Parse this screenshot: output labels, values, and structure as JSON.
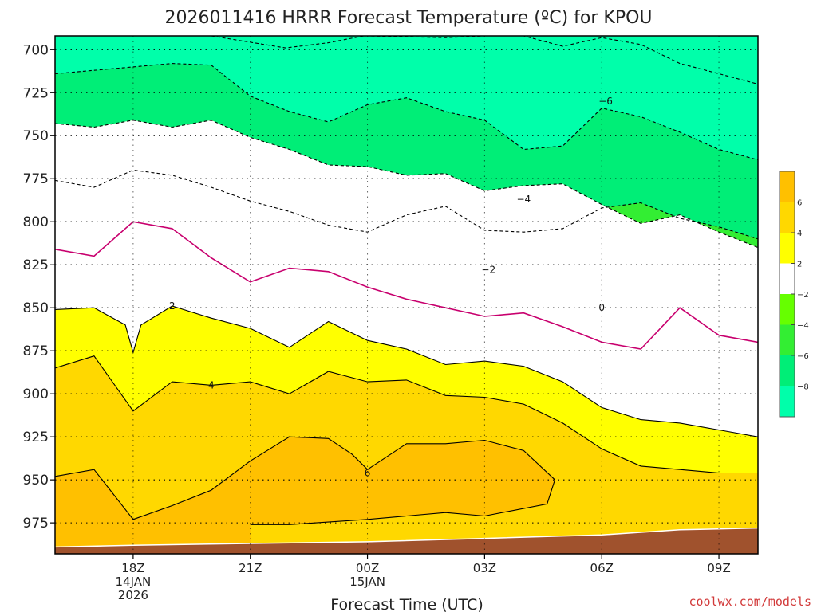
{
  "chart_data": {
    "type": "contour",
    "title": "2026011416 HRRR Forecast Temperature (ºC) for KPOU",
    "xlabel": "Forecast Time (UTC)",
    "credit": "coolwx.com/models",
    "x_ticks": [
      {
        "hour": 18,
        "lines": [
          "18Z",
          "14JAN",
          "2026"
        ]
      },
      {
        "hour": 21,
        "lines": [
          "21Z"
        ]
      },
      {
        "hour": 24,
        "lines": [
          "00Z",
          "15JAN"
        ]
      },
      {
        "hour": 27,
        "lines": [
          "03Z"
        ]
      },
      {
        "hour": 30,
        "lines": [
          "06Z"
        ]
      },
      {
        "hour": 33,
        "lines": [
          "09Z"
        ]
      }
    ],
    "xlim": [
      16,
      34
    ],
    "y_ticks": [
      "700",
      "725",
      "750",
      "775",
      "800",
      "825",
      "850",
      "875",
      "900",
      "925",
      "950",
      "975"
    ],
    "ylim": [
      692,
      993
    ],
    "y_scale": "inverted",
    "grid": true,
    "colorbar": {
      "labels": [
        "6",
        "4",
        "2",
        "−2",
        "−4",
        "−6",
        "−8"
      ],
      "bands": [
        {
          "from": 6,
          "to": 8,
          "color": "#ffc000"
        },
        {
          "from": 4,
          "to": 6,
          "color": "#ffd800"
        },
        {
          "from": 2,
          "to": 4,
          "color": "#ffff00"
        },
        {
          "from": -2,
          "to": 2,
          "color": "#ffffff"
        },
        {
          "from": -4,
          "to": -2,
          "color": "#66ff00"
        },
        {
          "from": -6,
          "to": -4,
          "color": "#33ee33"
        },
        {
          "from": -8,
          "to": -6,
          "color": "#00ee77"
        },
        {
          "from": -10,
          "to": -8,
          "color": "#00ffaa"
        }
      ]
    },
    "ground_color": "#a0522d",
    "ground": [
      [
        16,
        989
      ],
      [
        18,
        988
      ],
      [
        21,
        987
      ],
      [
        24,
        986
      ],
      [
        27,
        984
      ],
      [
        30,
        982
      ],
      [
        32,
        979
      ],
      [
        34,
        978
      ]
    ],
    "contours": [
      {
        "level": -8,
        "style": "dashed",
        "color": "#000000",
        "fill": "#00ffaa",
        "label": "",
        "points": [
          [
            20.0,
            692
          ],
          [
            21.9,
            699
          ],
          [
            23.0,
            696
          ],
          [
            23.9,
            692
          ],
          [
            24.0,
            692
          ],
          [
            26.0,
            693
          ],
          [
            27.0,
            692
          ],
          [
            28.0,
            692
          ],
          [
            29.0,
            698
          ],
          [
            30.0,
            693
          ],
          [
            31.0,
            697
          ],
          [
            32.0,
            708
          ],
          [
            33.0,
            714
          ],
          [
            34.0,
            720
          ]
        ]
      },
      {
        "level": -6,
        "style": "dashed",
        "color": "#000000",
        "fill": "#00ee77",
        "label": "−6",
        "label_at": [
          30.1,
          730
        ],
        "points": [
          [
            16.0,
            714
          ],
          [
            18.0,
            710
          ],
          [
            19.0,
            708
          ],
          [
            20.0,
            709
          ],
          [
            21.0,
            727
          ],
          [
            22.0,
            736
          ],
          [
            23.0,
            742
          ],
          [
            24.0,
            732
          ],
          [
            25.0,
            728
          ],
          [
            26.0,
            736
          ],
          [
            27.0,
            741
          ],
          [
            28.0,
            758
          ],
          [
            29.0,
            756
          ],
          [
            30.0,
            734
          ],
          [
            31.0,
            739
          ],
          [
            32.0,
            748
          ],
          [
            33.0,
            758
          ],
          [
            34.0,
            764
          ]
        ]
      },
      {
        "level": -4,
        "style": "dashed",
        "color": "#000000",
        "fill": "#33ee33",
        "label": "−4",
        "label_at": [
          28.0,
          787
        ],
        "points": [
          [
            16.0,
            776
          ],
          [
            17.0,
            780
          ],
          [
            18.0,
            770
          ],
          [
            19.0,
            773
          ],
          [
            20.0,
            780
          ],
          [
            21.0,
            788
          ],
          [
            22.0,
            794
          ],
          [
            23.0,
            802
          ],
          [
            24.0,
            806
          ],
          [
            25.0,
            796
          ],
          [
            26.0,
            791
          ],
          [
            27.0,
            805
          ],
          [
            28.0,
            806
          ],
          [
            29.0,
            804
          ],
          [
            30.0,
            792
          ],
          [
            31.0,
            789
          ],
          [
            32.0,
            798
          ],
          [
            33.0,
            803
          ],
          [
            34.0,
            810
          ]
        ]
      },
      {
        "level": -2,
        "style": "dashed",
        "color": "#000000",
        "fill": "#66ff00",
        "label": "−2",
        "label_at": [
          27.1,
          828
        ],
        "points": [
          [
            16.0,
            743
          ],
          [
            17.0,
            745
          ],
          [
            18.0,
            741
          ],
          [
            19.0,
            745
          ],
          [
            20.0,
            741
          ],
          [
            21.0,
            751
          ],
          [
            22.0,
            758
          ],
          [
            23.0,
            767
          ],
          [
            24.0,
            768
          ],
          [
            25.0,
            773
          ],
          [
            26.0,
            772
          ],
          [
            27.0,
            782
          ],
          [
            28.0,
            779
          ],
          [
            29.0,
            778
          ],
          [
            30.0,
            790
          ],
          [
            31.0,
            801
          ],
          [
            32.0,
            796
          ],
          [
            33.0,
            806
          ],
          [
            34.0,
            815
          ]
        ]
      },
      {
        "level": 0,
        "style": "solid",
        "color": "#c8006e",
        "fill": "",
        "label": "0",
        "label_at": [
          30.0,
          850
        ],
        "points": [
          [
            16.0,
            816
          ],
          [
            17.0,
            820
          ],
          [
            18.0,
            800
          ],
          [
            19.0,
            804
          ],
          [
            20.0,
            821
          ],
          [
            21.0,
            835
          ],
          [
            22.0,
            827
          ],
          [
            23.0,
            829
          ],
          [
            24.0,
            838
          ],
          [
            25.0,
            845
          ],
          [
            26.0,
            850
          ],
          [
            27.0,
            855
          ],
          [
            28.0,
            853
          ],
          [
            29.0,
            861
          ],
          [
            30.0,
            870
          ],
          [
            31.0,
            874
          ],
          [
            32.0,
            850
          ],
          [
            33.0,
            866
          ],
          [
            34.0,
            870
          ]
        ]
      },
      {
        "level": 2,
        "style": "solid",
        "color": "#000000",
        "fill": "#ffff00",
        "label": "2",
        "label_at": [
          19.0,
          849
        ],
        "points": [
          [
            16.0,
            851
          ],
          [
            17.0,
            850
          ],
          [
            17.8,
            860
          ],
          [
            18.0,
            876
          ],
          [
            18.2,
            860
          ],
          [
            19.0,
            849
          ],
          [
            20.0,
            856
          ],
          [
            21.0,
            862
          ],
          [
            22.0,
            873
          ],
          [
            23.0,
            858
          ],
          [
            24.0,
            869
          ],
          [
            25.0,
            874
          ],
          [
            26.0,
            883
          ],
          [
            27.0,
            881
          ],
          [
            28.0,
            884
          ],
          [
            29.0,
            893
          ],
          [
            30.0,
            908
          ],
          [
            31.0,
            915
          ],
          [
            32.0,
            917
          ],
          [
            33.0,
            921
          ],
          [
            34.0,
            925
          ]
        ]
      },
      {
        "level": 4,
        "style": "solid",
        "color": "#000000",
        "fill": "#ffd800",
        "label": "4",
        "label_at": [
          20.0,
          895
        ],
        "points": [
          [
            16.0,
            885
          ],
          [
            17.0,
            878
          ],
          [
            18.0,
            910
          ],
          [
            19.0,
            893
          ],
          [
            20.0,
            895
          ],
          [
            21.0,
            893
          ],
          [
            22.0,
            900
          ],
          [
            23.0,
            887
          ],
          [
            24.0,
            893
          ],
          [
            25.0,
            892
          ],
          [
            26.0,
            901
          ],
          [
            27.0,
            902
          ],
          [
            28.0,
            906
          ],
          [
            29.0,
            917
          ],
          [
            30.0,
            932
          ],
          [
            31.0,
            942
          ],
          [
            32.0,
            944
          ],
          [
            33.0,
            946
          ],
          [
            34.0,
            946
          ]
        ]
      },
      {
        "level": 6,
        "style": "solid",
        "color": "#000000",
        "fill": "#ffc000",
        "label": "6",
        "label_at": [
          24.0,
          946
        ],
        "points": [
          [
            16.0,
            948
          ],
          [
            17.0,
            944
          ],
          [
            18.0,
            973
          ],
          [
            19.0,
            965
          ],
          [
            20.0,
            956
          ],
          [
            21.0,
            939
          ],
          [
            22.0,
            925
          ],
          [
            23.0,
            926
          ],
          [
            23.6,
            935
          ],
          [
            24.0,
            944
          ],
          [
            25.0,
            929
          ],
          [
            26.0,
            929
          ],
          [
            27.0,
            927
          ],
          [
            28.0,
            933
          ],
          [
            28.8,
            950
          ],
          [
            28.6,
            964
          ],
          [
            27.0,
            971
          ],
          [
            26.0,
            969
          ],
          [
            25.0,
            971
          ],
          [
            24.0,
            973
          ],
          [
            22.0,
            976
          ],
          [
            21.0,
            976
          ]
        ]
      }
    ]
  }
}
